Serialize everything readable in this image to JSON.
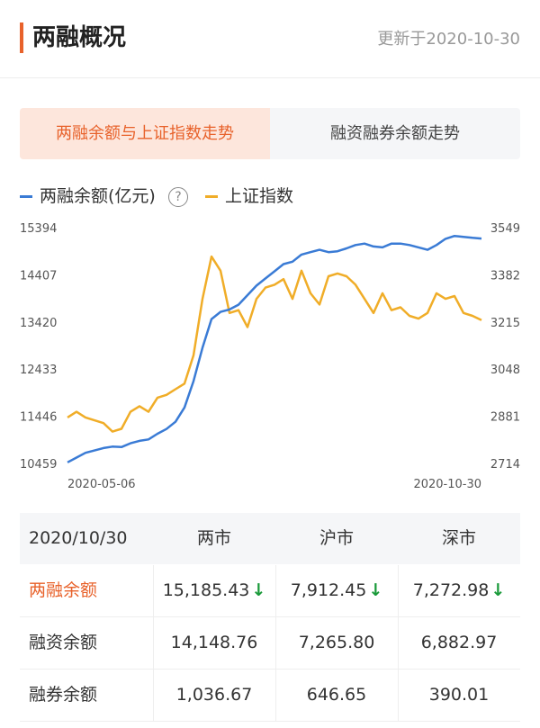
{
  "header": {
    "title": "两融概况",
    "update": "更新于2020-10-30"
  },
  "tabs": [
    {
      "label": "两融余额与上证指数走势"
    },
    {
      "label": "融资融券余额走势"
    }
  ],
  "legend": {
    "series1": "两融余额(亿元)",
    "series2": "上证指数",
    "help": "?"
  },
  "colors": {
    "accent": "#e8622b",
    "blue": "#3a7bd5",
    "orange": "#f0ad28",
    "down": "#1a9a3a"
  },
  "chart_data": {
    "type": "line",
    "x_labels": [
      "2020-05-06",
      "2020-10-30"
    ],
    "left_axis": {
      "ticks": [
        10459,
        11446,
        12433,
        13420,
        14407,
        15394
      ],
      "range": [
        10459,
        15394
      ]
    },
    "right_axis": {
      "ticks": [
        2714,
        2881,
        3048,
        3215,
        3382,
        3549
      ],
      "range": [
        2714,
        3549
      ]
    },
    "series": [
      {
        "name": "两融余额(亿元)",
        "axis": "left",
        "values": [
          10500,
          10600,
          10700,
          10750,
          10800,
          10830,
          10820,
          10900,
          10950,
          10980,
          11100,
          11200,
          11350,
          11650,
          12200,
          12900,
          13500,
          13650,
          13700,
          13800,
          14000,
          14200,
          14350,
          14500,
          14650,
          14700,
          14850,
          14900,
          14950,
          14900,
          14920,
          14980,
          15050,
          15080,
          15020,
          15000,
          15080,
          15080,
          15050,
          15000,
          14950,
          15050,
          15180,
          15240,
          15220,
          15200,
          15185.43
        ]
      },
      {
        "name": "上证指数",
        "axis": "right",
        "values": [
          2880,
          2900,
          2880,
          2870,
          2860,
          2830,
          2840,
          2900,
          2920,
          2900,
          2950,
          2960,
          2980,
          3000,
          3100,
          3300,
          3450,
          3400,
          3250,
          3260,
          3200,
          3300,
          3340,
          3350,
          3370,
          3300,
          3400,
          3320,
          3280,
          3380,
          3390,
          3380,
          3350,
          3300,
          3250,
          3320,
          3260,
          3270,
          3240,
          3230,
          3250,
          3320,
          3300,
          3310,
          3250,
          3240,
          3225
        ]
      }
    ]
  },
  "table": {
    "header": [
      "2020/10/30",
      "两市",
      "沪市",
      "深市"
    ],
    "rows": [
      {
        "label": "两融余额",
        "values": [
          "15,185.43",
          "7,912.45",
          "7,272.98"
        ],
        "down": true
      },
      {
        "label": "融资余额",
        "values": [
          "14,148.76",
          "7,265.80",
          "6,882.97"
        ]
      },
      {
        "label": "融券余额",
        "values": [
          "1,036.67",
          "646.65",
          "390.01"
        ]
      }
    ],
    "arrow": "↓"
  }
}
